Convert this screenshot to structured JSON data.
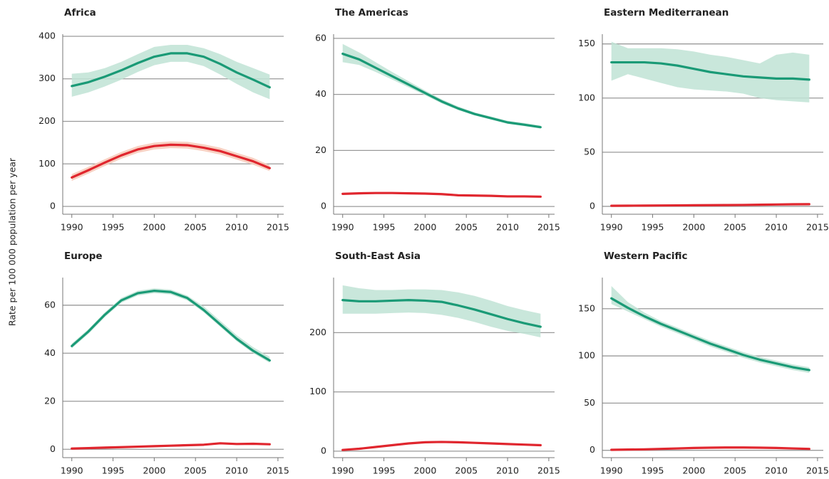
{
  "ylabel": "Rate per 100 000 population per year",
  "chart_data": [
    {
      "type": "line",
      "title": "Africa",
      "x": [
        1990,
        1992,
        1994,
        1996,
        1998,
        2000,
        2002,
        2004,
        2006,
        2008,
        2010,
        2012,
        2014
      ],
      "xlim": [
        1988.9,
        2015.7
      ],
      "xticks": [
        1990,
        1995,
        2000,
        2005,
        2010,
        2015
      ],
      "ylim": [
        -10,
        405
      ],
      "yticks": [
        0,
        100,
        200,
        300,
        400
      ],
      "grid": true,
      "series": [
        {
          "color": "#1a9a76",
          "band_color": "#bfe3d5",
          "values": [
            283,
            292,
            305,
            320,
            337,
            352,
            360,
            360,
            352,
            335,
            315,
            298,
            280
          ],
          "lower": [
            258,
            268,
            282,
            298,
            316,
            332,
            340,
            340,
            330,
            310,
            288,
            268,
            252
          ],
          "upper": [
            312,
            315,
            325,
            340,
            358,
            375,
            380,
            380,
            372,
            358,
            340,
            325,
            310
          ]
        },
        {
          "color": "#e0262e",
          "band_color": "#f7c9b8",
          "values": [
            68,
            85,
            103,
            120,
            134,
            142,
            145,
            144,
            138,
            130,
            118,
            106,
            90
          ],
          "lower": [
            60,
            77,
            95,
            112,
            126,
            134,
            137,
            136,
            130,
            122,
            110,
            98,
            83
          ],
          "upper": [
            76,
            93,
            111,
            128,
            142,
            150,
            153,
            152,
            146,
            138,
            126,
            114,
            97
          ]
        }
      ]
    },
    {
      "type": "line",
      "title": "The Americas",
      "x": [
        1990,
        1992,
        1994,
        1996,
        1998,
        2000,
        2002,
        2004,
        2006,
        2008,
        2010,
        2012,
        2014
      ],
      "xlim": [
        1988.9,
        2015.7
      ],
      "xticks": [
        1990,
        1995,
        2000,
        2005,
        2010,
        2015
      ],
      "ylim": [
        -1.5,
        61.5
      ],
      "yticks": [
        0,
        20,
        40,
        60
      ],
      "grid": true,
      "series": [
        {
          "color": "#1a9a76",
          "band_color": "#bfe3d5",
          "values": [
            54.5,
            52.5,
            49.5,
            46.5,
            43.5,
            40.5,
            37.5,
            35,
            33,
            31.5,
            30,
            29.2,
            28.3
          ],
          "lower": [
            51.5,
            50.5,
            48,
            45.3,
            42.5,
            39.7,
            36.8,
            34.4,
            32.5,
            31,
            29.5,
            28.7,
            27.8
          ],
          "upper": [
            58,
            55,
            51.5,
            48,
            44.7,
            41.4,
            38.3,
            35.7,
            33.6,
            32.1,
            30.6,
            29.8,
            28.9
          ]
        },
        {
          "color": "#e0262e",
          "values": [
            4.5,
            4.7,
            4.8,
            4.8,
            4.7,
            4.6,
            4.4,
            4,
            3.9,
            3.8,
            3.6,
            3.6,
            3.5
          ]
        }
      ]
    },
    {
      "type": "line",
      "title": "Eastern Mediterranean",
      "x": [
        1990,
        1992,
        1994,
        1996,
        1998,
        2000,
        2002,
        2004,
        2006,
        2008,
        2010,
        2012,
        2014
      ],
      "xlim": [
        1988.9,
        2015.7
      ],
      "xticks": [
        1990,
        1995,
        2000,
        2005,
        2010,
        2015
      ],
      "ylim": [
        -4,
        159
      ],
      "yticks": [
        0,
        50,
        100,
        150
      ],
      "grid": true,
      "series": [
        {
          "color": "#1a9a76",
          "band_color": "#bfe3d5",
          "values": [
            133,
            133,
            133,
            132,
            130,
            127,
            124,
            122,
            120,
            119,
            118,
            118,
            117
          ],
          "lower": [
            116,
            122,
            118,
            114,
            110,
            108,
            107,
            106,
            104,
            100,
            98,
            97,
            96
          ],
          "upper": [
            152,
            146,
            146,
            146,
            145,
            143,
            140,
            138,
            135,
            132,
            140,
            142,
            140
          ]
        },
        {
          "color": "#e0262e",
          "values": [
            0.5,
            0.6,
            0.7,
            0.8,
            0.9,
            1,
            1.1,
            1.2,
            1.3,
            1.5,
            1.7,
            1.9,
            2
          ]
        }
      ]
    },
    {
      "type": "line",
      "title": "Europe",
      "x": [
        1990,
        1992,
        1994,
        1996,
        1998,
        2000,
        2002,
        2004,
        2006,
        2008,
        2010,
        2012,
        2014
      ],
      "xlim": [
        1988.9,
        2015.7
      ],
      "xticks": [
        1990,
        1995,
        2000,
        2005,
        2010,
        2015
      ],
      "ylim": [
        -2,
        71.5
      ],
      "yticks": [
        0,
        20,
        40,
        60
      ],
      "grid": true,
      "series": [
        {
          "color": "#1a9a76",
          "band_color": "#bfe3d5",
          "values": [
            43,
            49,
            56,
            62,
            65,
            66,
            65.5,
            63,
            58,
            52,
            46,
            41,
            37
          ],
          "lower": [
            42,
            48,
            55,
            61,
            64,
            65,
            64.5,
            62,
            57,
            51,
            45,
            40,
            36
          ],
          "upper": [
            44,
            50,
            57,
            63,
            66,
            67,
            66.5,
            64,
            59.5,
            53.5,
            47.5,
            42.5,
            38.5
          ]
        },
        {
          "color": "#e0262e",
          "values": [
            0.3,
            0.5,
            0.7,
            0.9,
            1.1,
            1.3,
            1.5,
            1.7,
            1.9,
            2.5,
            2.2,
            2.3,
            2.1
          ]
        }
      ]
    },
    {
      "type": "line",
      "title": "South-East Asia",
      "x": [
        1990,
        1992,
        1994,
        1996,
        1998,
        2000,
        2002,
        2004,
        2006,
        2008,
        2010,
        2012,
        2014
      ],
      "xlim": [
        1988.9,
        2015.7
      ],
      "xticks": [
        1990,
        1995,
        2000,
        2005,
        2010,
        2015
      ],
      "ylim": [
        -5,
        293
      ],
      "yticks": [
        0,
        100,
        200
      ],
      "grid": true,
      "series": [
        {
          "color": "#1a9a76",
          "band_color": "#bfe3d5",
          "values": [
            255,
            253,
            253,
            254,
            255,
            254,
            252,
            246,
            239,
            231,
            223,
            216,
            210
          ],
          "lower": [
            232,
            232,
            232,
            233,
            234,
            233,
            230,
            225,
            218,
            210,
            203,
            198,
            192
          ],
          "upper": [
            280,
            275,
            272,
            272,
            273,
            273,
            272,
            268,
            262,
            254,
            245,
            238,
            232
          ]
        },
        {
          "color": "#e0262e",
          "values": [
            2,
            4,
            7,
            10,
            13,
            15,
            15.5,
            15,
            14,
            13,
            12,
            11,
            10
          ]
        }
      ]
    },
    {
      "type": "line",
      "title": "Western Pacific",
      "x": [
        1990,
        1992,
        1994,
        1996,
        1998,
        2000,
        2002,
        2004,
        2006,
        2008,
        2010,
        2012,
        2014
      ],
      "xlim": [
        1988.9,
        2015.7
      ],
      "xticks": [
        1990,
        1995,
        2000,
        2005,
        2010,
        2015
      ],
      "ylim": [
        -4,
        183
      ],
      "yticks": [
        0,
        50,
        100,
        150
      ],
      "grid": true,
      "series": [
        {
          "color": "#1a9a76",
          "band_color": "#bfe3d5",
          "values": [
            161,
            151,
            142,
            134,
            127,
            120,
            113,
            107,
            101,
            96,
            92,
            88,
            85
          ],
          "lower": [
            155,
            147,
            139,
            131,
            124,
            117,
            110,
            104,
            98,
            93,
            89,
            85,
            82
          ],
          "upper": [
            174,
            157,
            146,
            137,
            130,
            123,
            116,
            110,
            104,
            99,
            95,
            91,
            88
          ]
        },
        {
          "color": "#e0262e",
          "values": [
            0.5,
            0.8,
            1,
            1.5,
            2,
            2.5,
            2.8,
            3,
            3,
            2.8,
            2.5,
            2,
            1.5
          ]
        }
      ]
    }
  ]
}
